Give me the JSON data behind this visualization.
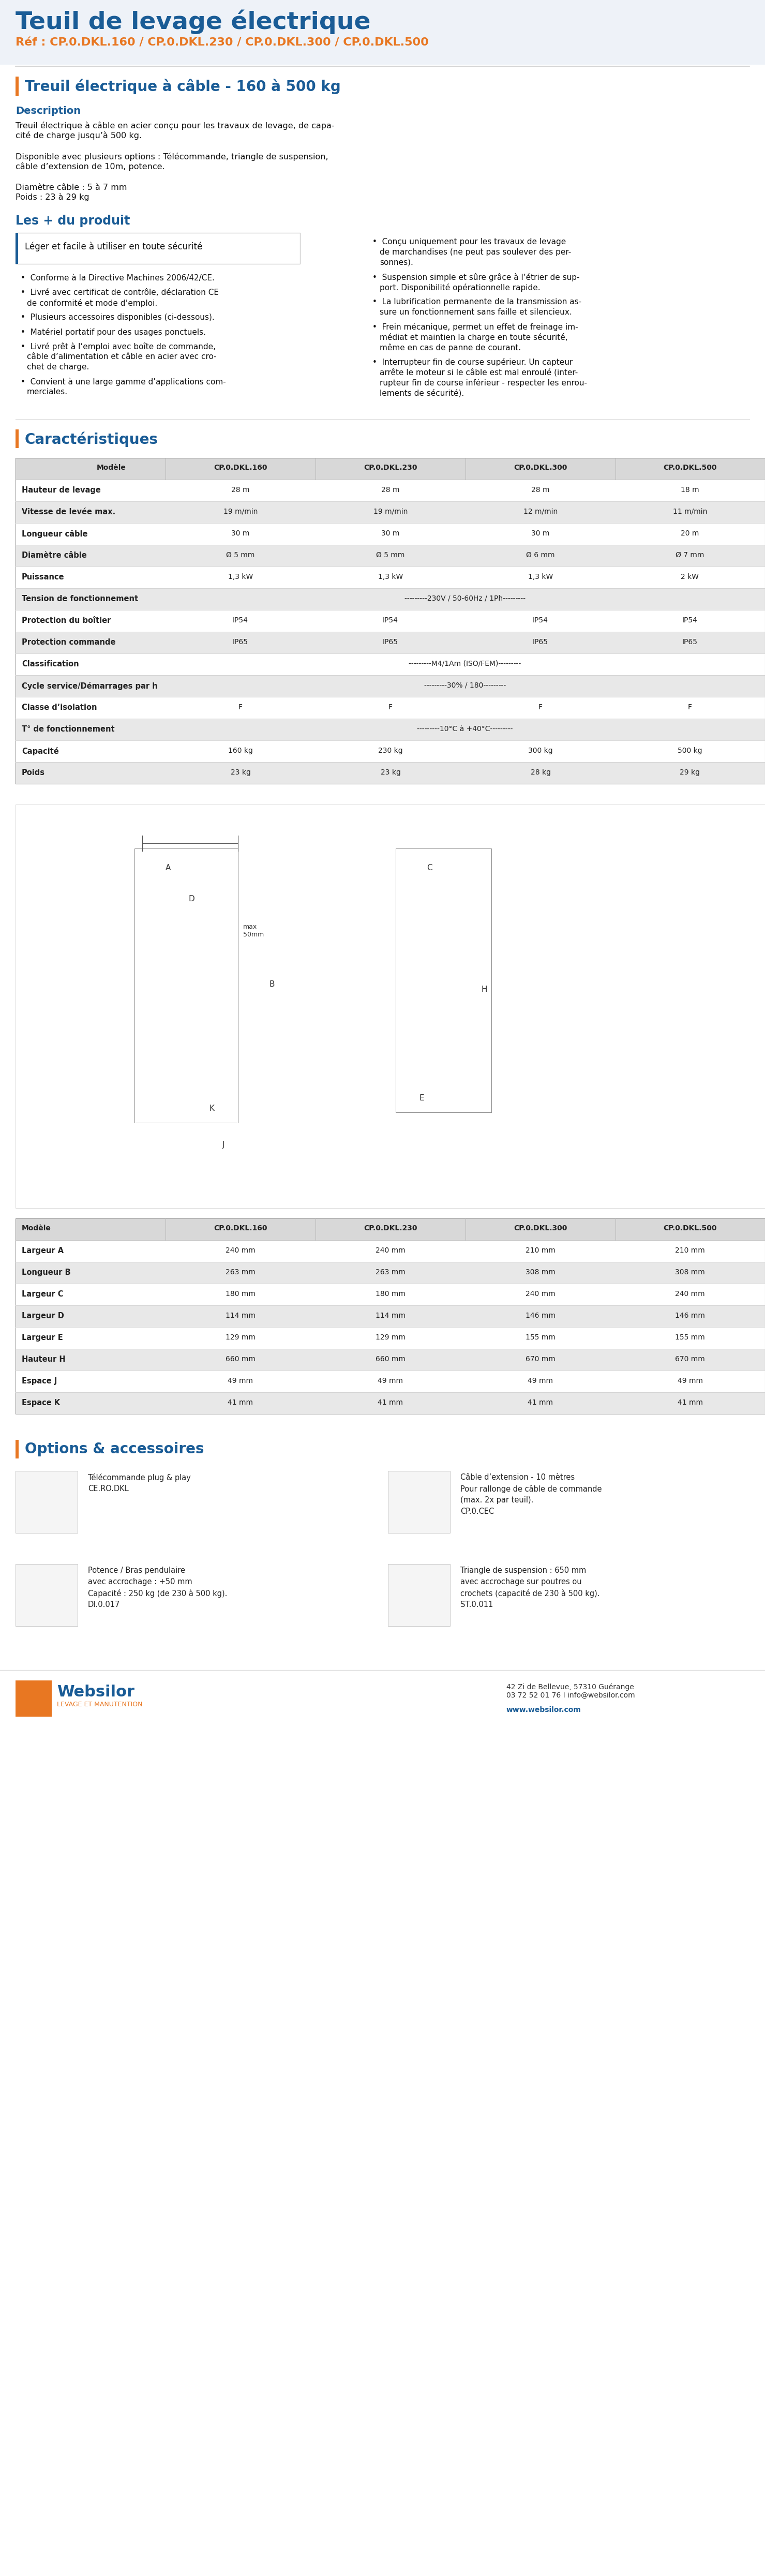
{
  "title": "Teuil de levage électrique",
  "ref": "Réf : CP.0.DKL.160 / CP.0.DKL.230 / CP.0.DKL.300 / CP.0.DKL.500",
  "section1_title": "Treuil électrique à câble - 160 à 500 kg",
  "description_label": "Description",
  "description_text1": "Treuil électrique à câble en acier conçu pour les travaux de levage, de capa-\ncité de charge jusqu’à 500 kg.",
  "description_text2": "Disponible avec plusieurs options : Télécommande, triangle de suspension,\ncâble d’extension de 10m, potence.",
  "description_text3": "Diamètre câble : 5 à 7 mm\nPoids : 23 à 29 kg",
  "plus_title": "Les + du produit",
  "plus_box_text": "Léger et facile à utiliser en toute sécurité",
  "bullet_left": [
    "Conforme à la Directive Machines 2006/42/CE.",
    "Livré avec certificat de contrôle, déclaration CE\nde conformité et mode d’emploi.",
    "Plusieurs accessoires disponibles (ci-dessous).",
    "Matériel portatif pour des usages ponctuels.",
    "Livré prêt à l’emploi avec boîte de commande,\ncâble d’alimentation et câble en acier avec cro-\nchet de charge.",
    "Convient à une large gamme d’applications com-\nmerciales."
  ],
  "bullet_right": [
    "Conçu uniquement pour les travaux de levage\nde marchandises (ne peut pas soulever des per-\nsonnes).",
    "Suspension simple et sûre grâce à l’étrier de sup-\nport. Disponibilité opérationnelle rapide.",
    "La lubrification permanente de la transmission as-\nsure un fonctionnement sans faille et silencieux.",
    "Frein mécanique, permet un effet de freinage im-\nmédiat et maintien la charge en toute sécurité,\nmême en cas de panne de courant.",
    "Interrupteur fin de course supérieur. Un capteur\narrête le moteur si le câble est mal enroulé (inter-\nrupteur fin de course inférieur - respecter les enrou-\nlements de sécurité)."
  ],
  "carac_title": "Caractéristiques",
  "table_headers": [
    "Modèle",
    "CP.0.DKL.160",
    "CP.0.DKL.230",
    "CP.0.DKL.300",
    "CP.0.DKL.500"
  ],
  "table_rows": [
    [
      "Hauteur de levage",
      "28 m",
      "28 m",
      "28 m",
      "18 m",
      "normal"
    ],
    [
      "Vitesse de levée max.",
      "19 m/min",
      "19 m/min",
      "12 m/min",
      "11 m/min",
      "normal"
    ],
    [
      "Longueur câble",
      "30 m",
      "30 m",
      "30 m",
      "20 m",
      "normal"
    ],
    [
      "Diamètre câble",
      "Ø 5 mm",
      "Ø 5 mm",
      "Ø 6 mm",
      "Ø 7 mm",
      "normal"
    ],
    [
      "Puissance",
      "1,3 kW",
      "1,3 kW",
      "1,3 kW",
      "2 kW",
      "normal"
    ],
    [
      "Tension de fonctionnement",
      "---------230V / 50-60Hz / 1Ph---------",
      "",
      "",
      "",
      "merged"
    ],
    [
      "Protection du boîtier",
      "IP54",
      "IP54",
      "IP54",
      "IP54",
      "normal"
    ],
    [
      "Protection commande",
      "IP65",
      "IP65",
      "IP65",
      "IP65",
      "normal"
    ],
    [
      "Classification",
      "---------M4/1Am (ISO/FEM)---------",
      "",
      "",
      "",
      "merged"
    ],
    [
      "Cycle service/Démarrages par h",
      "---------30% / 180---------",
      "",
      "",
      "",
      "merged"
    ],
    [
      "Classe d’isolation",
      "F",
      "F",
      "F",
      "F",
      "normal"
    ],
    [
      "T° de fonctionnement",
      "---------10°C à +40°C---------",
      "",
      "",
      "",
      "merged"
    ],
    [
      "Capacité",
      "160 kg",
      "230 kg",
      "300 kg",
      "500 kg",
      "normal"
    ],
    [
      "Poids",
      "23 kg",
      "23 kg",
      "28 kg",
      "29 kg",
      "normal"
    ]
  ],
  "options_title": "Options & accessoires",
  "dim_table_headers": [
    "Modèle",
    "CP.0.DKL.160",
    "CP.0.DKL.230",
    "CP.0.DKL.300",
    "CP.0.DKL.500"
  ],
  "dim_table_rows": [
    [
      "Largeur A",
      "240 mm",
      "240 mm",
      "210 mm",
      "210 mm"
    ],
    [
      "Longueur B",
      "263 mm",
      "263 mm",
      "308 mm",
      "308 mm"
    ],
    [
      "Largeur C",
      "180 mm",
      "180 mm",
      "240 mm",
      "240 mm"
    ],
    [
      "Largeur D",
      "114 mm",
      "114 mm",
      "146 mm",
      "146 mm"
    ],
    [
      "Largeur E",
      "129 mm",
      "129 mm",
      "155 mm",
      "155 mm"
    ],
    [
      "Hauteur H",
      "660 mm",
      "660 mm",
      "670 mm",
      "670 mm"
    ],
    [
      "Espace J",
      "49 mm",
      "49 mm",
      "49 mm",
      "49 mm"
    ],
    [
      "Espace K",
      "41 mm",
      "41 mm",
      "41 mm",
      "41 mm"
    ]
  ],
  "accessories": [
    {
      "label": "Télécommande plug & play\nCE.RO.DKL"
    },
    {
      "label": "Câble d’extension - 10 mètres\nPour rallonge de câble de commande\n(max. 2x par teuil).\nCP.0.CEC"
    },
    {
      "label": "Potence / Bras pendulaire\navec accrochage : +50 mm\nCapacité : 250 kg (de 230 à 500 kg).\nDI.0.017"
    },
    {
      "label": "Triangle de suspension : 650 mm\navec accrochage sur poutres ou\ncrochets (capacité de 230 à 500 kg).\nST.0.011"
    }
  ],
  "footer_address": "42 Zi de Bellevue, 57310 Guérange\n03 72 52 01 76 I info@websilor.com",
  "footer_website": "www.websilor.com",
  "color_blue": "#1a5c96",
  "color_orange": "#e87722",
  "color_row_alt": "#e8e8e8",
  "color_row_white": "#ffffff",
  "color_table_header_bg": "#e0e0e0"
}
